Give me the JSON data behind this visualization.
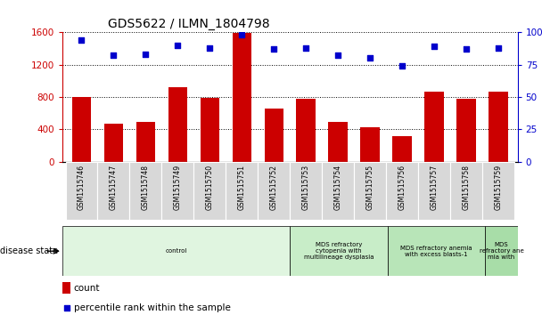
{
  "title": "GDS5622 / ILMN_1804798",
  "samples": [
    "GSM1515746",
    "GSM1515747",
    "GSM1515748",
    "GSM1515749",
    "GSM1515750",
    "GSM1515751",
    "GSM1515752",
    "GSM1515753",
    "GSM1515754",
    "GSM1515755",
    "GSM1515756",
    "GSM1515757",
    "GSM1515758",
    "GSM1515759"
  ],
  "counts": [
    800,
    470,
    490,
    920,
    790,
    1590,
    660,
    780,
    490,
    420,
    310,
    870,
    775,
    860
  ],
  "percentiles": [
    94,
    82,
    83,
    90,
    88,
    98,
    87,
    88,
    82,
    80,
    74,
    89,
    87,
    88
  ],
  "ylim_left": [
    0,
    1600
  ],
  "ylim_right": [
    0,
    100
  ],
  "yticks_left": [
    0,
    400,
    800,
    1200,
    1600
  ],
  "yticks_right": [
    0,
    25,
    50,
    75,
    100
  ],
  "yticklabels_right": [
    "0",
    "25",
    "50",
    "75",
    "100%"
  ],
  "bar_color": "#cc0000",
  "dot_color": "#0000cc",
  "disease_states": [
    {
      "label": "control",
      "start": 0,
      "end": 7,
      "color": "#e0f5e0"
    },
    {
      "label": "MDS refractory\ncytopenia with\nmultilineage dysplasia",
      "start": 7,
      "end": 10,
      "color": "#c8edc8"
    },
    {
      "label": "MDS refractory anemia\nwith excess blasts-1",
      "start": 10,
      "end": 13,
      "color": "#b8e5b8"
    },
    {
      "label": "MDS\nrefractory ane\nmia with",
      "start": 13,
      "end": 14,
      "color": "#a8dda8"
    }
  ],
  "xlabel_disease": "disease state",
  "legend_count": "count",
  "legend_pct": "percentile rank within the sample",
  "fig_width": 6.08,
  "fig_height": 3.63,
  "dpi": 100
}
